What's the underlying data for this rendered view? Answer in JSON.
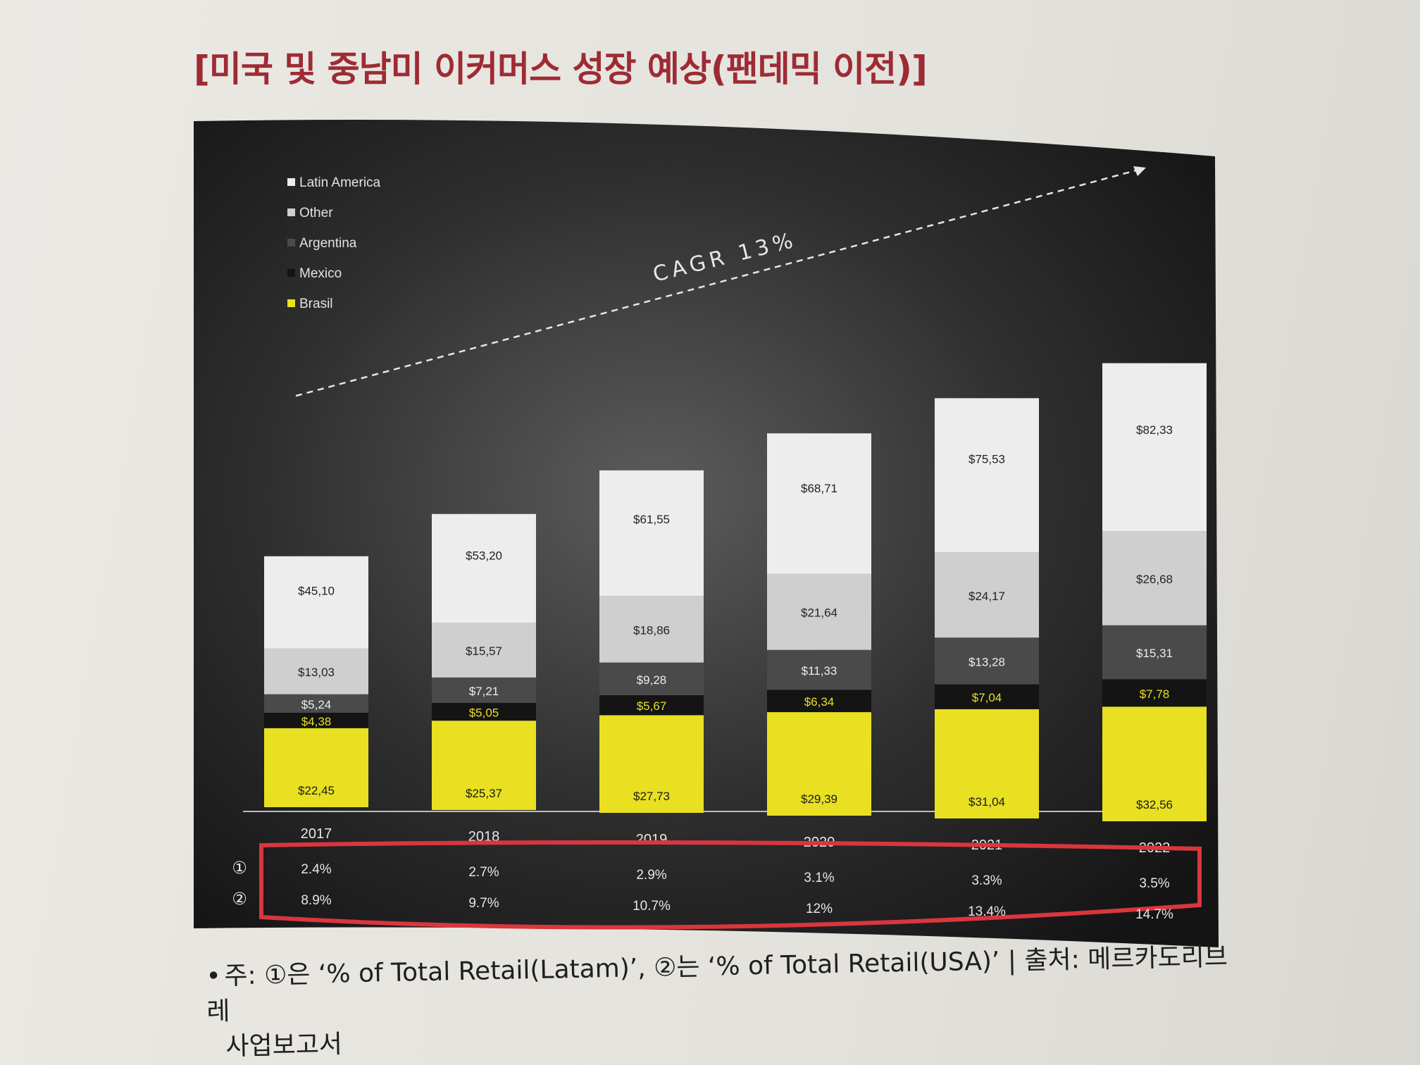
{
  "title": "[미국 및 중남미 이커머스 성장 예상(팬데믹 이전)]",
  "note": {
    "bullet": "•",
    "line1": "주: ①은 ‘% of Total Retail(Latam)’, ②는 ‘% of Total Retail(USA)’ | 출처: 메르카도리브레",
    "line2": "사업보고서"
  },
  "chart_data": {
    "type": "bar",
    "stacked": true,
    "categories": [
      "2017",
      "2018",
      "2019",
      "2020",
      "2021",
      "2022"
    ],
    "annotation": "CAGR 13%",
    "legend_position": "top-left",
    "series": [
      {
        "name": "Brasil",
        "color": "#e8e021",
        "label_color": "#1a1a1a",
        "values": [
          22.45,
          25.37,
          27.73,
          29.39,
          31.04,
          32.56
        ],
        "labels": [
          "$22,45",
          "$25,37",
          "$27,73",
          "$29,39",
          "$31,04",
          "$32,56"
        ]
      },
      {
        "name": "Mexico",
        "color": "#141414",
        "label_color": "#e8e021",
        "values": [
          4.38,
          5.05,
          5.67,
          6.34,
          7.04,
          7.78
        ],
        "labels": [
          "$4,38",
          "$5,05",
          "$5,67",
          "$6,34",
          "$7,04",
          "$7,78"
        ]
      },
      {
        "name": "Argentina",
        "color": "#4a4a4a",
        "label_color": "#ededed",
        "values": [
          5.24,
          7.21,
          9.28,
          11.33,
          13.28,
          15.31
        ],
        "labels": [
          "$5,24",
          "$7,21",
          "$9,28",
          "$11,33",
          "$13,28",
          "$15,31"
        ]
      },
      {
        "name": "Other",
        "color": "#cfcfcf",
        "label_color": "#222222",
        "values": [
          13.03,
          15.57,
          18.86,
          21.64,
          24.17,
          26.68
        ],
        "labels": [
          "$13,03",
          "$15,57",
          "$18,86",
          "$21,64",
          "$24,17",
          "$26,68"
        ]
      }
    ],
    "totals": {
      "name": "Latin America",
      "color": "#ededed",
      "values": [
        45.1,
        53.2,
        61.55,
        68.71,
        75.53,
        82.33
      ],
      "labels": [
        "$45,10",
        "$53,20",
        "$61,55",
        "$68,71",
        "$75,53",
        "$82,33"
      ]
    },
    "legend": [
      {
        "name": "Latin America",
        "color": "#ededed"
      },
      {
        "name": "Other",
        "color": "#cfcfcf"
      },
      {
        "name": "Argentina",
        "color": "#4a4a4a"
      },
      {
        "name": "Mexico",
        "color": "#141414"
      },
      {
        "name": "Brasil",
        "color": "#e8e021"
      }
    ],
    "table_rows": [
      {
        "marker": "①",
        "values": [
          "2.4%",
          "2.7%",
          "2.9%",
          "3.1%",
          "3.3%",
          "3.5%"
        ]
      },
      {
        "marker": "②",
        "values": [
          "8.9%",
          "9.7%",
          "10.7%",
          "12%",
          "13.4%",
          "14.7%"
        ]
      }
    ],
    "highlight_color": "#d9363e"
  }
}
